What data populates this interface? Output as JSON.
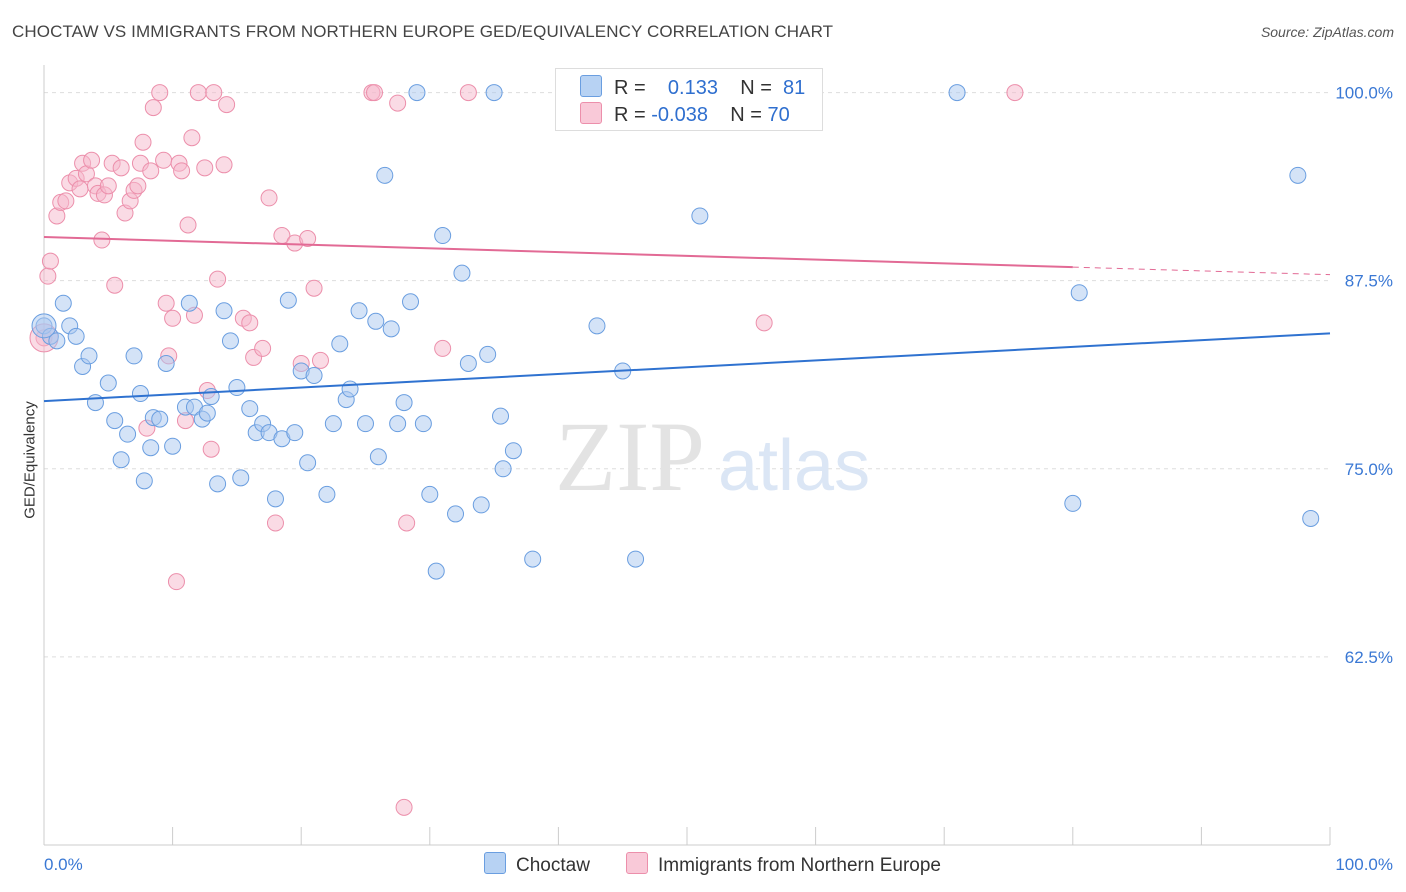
{
  "title": "CHOCTAW VS IMMIGRANTS FROM NORTHERN EUROPE GED/EQUIVALENCY CORRELATION CHART",
  "source": "Source: ZipAtlas.com",
  "watermark": {
    "zip": "ZIP",
    "atlas": "atlas"
  },
  "legend": {
    "r_label": "R =",
    "n_label": "N =",
    "rows": [
      {
        "r": "0.133",
        "n": "81"
      },
      {
        "r": "-0.038",
        "n": "70"
      }
    ]
  },
  "bottom_legend": [
    "Choctaw",
    "Immigrants from Northern Europe"
  ],
  "colors": {
    "blue_fill": "#a9c8f0",
    "blue_stroke": "#6a9ee0",
    "blue_line": "#2f72d0",
    "pink_fill": "#f6b8cb",
    "pink_stroke": "#ec8fab",
    "pink_line": "#e26a95",
    "tick": "#3a78d4",
    "grid": "#dddddd"
  },
  "chart_data": {
    "type": "scatter",
    "title": "CHOCTAW VS IMMIGRANTS FROM NORTHERN EUROPE GED/EQUIVALENCY CORRELATION CHART",
    "xlabel": "",
    "ylabel": "GED/Equivalency",
    "xlim": [
      0,
      100
    ],
    "ylim": [
      50,
      101.5
    ],
    "x_tick_labels": [
      "0.0%",
      "100.0%"
    ],
    "y_ticks": [
      62.5,
      75.0,
      87.5,
      100.0
    ],
    "y_tick_labels": [
      "62.5%",
      "75.0%",
      "87.5%",
      "100.0%"
    ],
    "grid": true,
    "legend_position": "top-center",
    "series": [
      {
        "name": "Choctaw",
        "color": "#a9c8f0",
        "trend": {
          "x": [
            0,
            100
          ],
          "y": [
            79.5,
            84.0
          ]
        },
        "points": [
          [
            0.0,
            84.5
          ],
          [
            0.5,
            83.8
          ],
          [
            1.0,
            83.5
          ],
          [
            1.5,
            86.0
          ],
          [
            2.0,
            84.5
          ],
          [
            2.5,
            83.8
          ],
          [
            3.0,
            81.8
          ],
          [
            3.5,
            82.5
          ],
          [
            4.0,
            79.4
          ],
          [
            5.0,
            80.7
          ],
          [
            5.5,
            78.2
          ],
          [
            6.0,
            75.6
          ],
          [
            6.5,
            77.3
          ],
          [
            7.0,
            82.5
          ],
          [
            7.5,
            80.0
          ],
          [
            7.8,
            74.2
          ],
          [
            8.3,
            76.4
          ],
          [
            8.5,
            78.4
          ],
          [
            9.0,
            78.3
          ],
          [
            9.5,
            82.0
          ],
          [
            10.0,
            76.5
          ],
          [
            11.0,
            79.1
          ],
          [
            11.3,
            86.0
          ],
          [
            11.7,
            79.1
          ],
          [
            12.3,
            78.3
          ],
          [
            12.7,
            78.7
          ],
          [
            13.0,
            79.8
          ],
          [
            13.5,
            74.0
          ],
          [
            14.0,
            85.5
          ],
          [
            14.5,
            83.5
          ],
          [
            15.0,
            80.4
          ],
          [
            15.3,
            74.4
          ],
          [
            16.0,
            79.0
          ],
          [
            16.5,
            77.4
          ],
          [
            17.0,
            78.0
          ],
          [
            17.5,
            77.4
          ],
          [
            18.0,
            73.0
          ],
          [
            18.5,
            77.0
          ],
          [
            19.0,
            86.2
          ],
          [
            19.5,
            77.4
          ],
          [
            20.0,
            81.5
          ],
          [
            20.5,
            75.4
          ],
          [
            21.0,
            81.2
          ],
          [
            22.0,
            73.3
          ],
          [
            22.5,
            78.0
          ],
          [
            23.0,
            83.3
          ],
          [
            23.5,
            79.6
          ],
          [
            23.8,
            80.3
          ],
          [
            24.5,
            85.5
          ],
          [
            25.0,
            78.0
          ],
          [
            25.8,
            84.8
          ],
          [
            26.0,
            75.8
          ],
          [
            26.5,
            94.5
          ],
          [
            27.0,
            84.3
          ],
          [
            27.5,
            78.0
          ],
          [
            28.0,
            79.4
          ],
          [
            28.5,
            86.1
          ],
          [
            29.0,
            100.0
          ],
          [
            29.5,
            78.0
          ],
          [
            30.0,
            73.3
          ],
          [
            30.5,
            68.2
          ],
          [
            31.0,
            90.5
          ],
          [
            32.5,
            88.0
          ],
          [
            32.0,
            72.0
          ],
          [
            33.0,
            82.0
          ],
          [
            34.0,
            72.6
          ],
          [
            34.5,
            82.6
          ],
          [
            35.0,
            100.0
          ],
          [
            35.5,
            78.5
          ],
          [
            35.7,
            75.0
          ],
          [
            36.5,
            76.2
          ],
          [
            38.0,
            69.0
          ],
          [
            43.0,
            84.5
          ],
          [
            45.0,
            81.5
          ],
          [
            46.0,
            69.0
          ],
          [
            51.0,
            91.8
          ],
          [
            71.0,
            100.0
          ],
          [
            80.0,
            72.7
          ],
          [
            80.5,
            86.7
          ],
          [
            97.5,
            94.5
          ],
          [
            98.5,
            71.7
          ]
        ]
      },
      {
        "name": "Immigrants from Northern Europe",
        "color": "#f6b8cb",
        "trend": {
          "x": [
            0,
            80
          ],
          "y": [
            90.4,
            88.4
          ]
        },
        "trend_dashed": {
          "x": [
            80,
            100
          ],
          "y": [
            88.4,
            87.9
          ]
        },
        "points": [
          [
            0.0,
            83.7
          ],
          [
            0.3,
            87.8
          ],
          [
            0.5,
            88.8
          ],
          [
            1.0,
            91.8
          ],
          [
            1.3,
            92.7
          ],
          [
            1.7,
            92.8
          ],
          [
            2.0,
            94.0
          ],
          [
            2.5,
            94.3
          ],
          [
            2.8,
            93.6
          ],
          [
            3.0,
            95.3
          ],
          [
            3.3,
            94.6
          ],
          [
            3.7,
            95.5
          ],
          [
            4.0,
            93.8
          ],
          [
            4.2,
            93.3
          ],
          [
            4.5,
            90.2
          ],
          [
            4.7,
            93.2
          ],
          [
            5.0,
            93.8
          ],
          [
            5.3,
            95.3
          ],
          [
            5.5,
            87.2
          ],
          [
            6.0,
            95.0
          ],
          [
            6.3,
            92.0
          ],
          [
            6.7,
            92.8
          ],
          [
            7.0,
            93.5
          ],
          [
            7.3,
            93.8
          ],
          [
            7.7,
            96.7
          ],
          [
            7.5,
            95.3
          ],
          [
            8.0,
            77.7
          ],
          [
            8.3,
            94.8
          ],
          [
            8.5,
            99.0
          ],
          [
            9.0,
            100.0
          ],
          [
            9.3,
            95.5
          ],
          [
            9.5,
            86.0
          ],
          [
            9.7,
            82.5
          ],
          [
            10.0,
            85.0
          ],
          [
            10.3,
            67.5
          ],
          [
            10.5,
            95.3
          ],
          [
            10.7,
            94.8
          ],
          [
            11.0,
            78.2
          ],
          [
            11.2,
            91.2
          ],
          [
            11.5,
            97.0
          ],
          [
            11.7,
            85.2
          ],
          [
            12.0,
            100.0
          ],
          [
            12.5,
            95.0
          ],
          [
            12.7,
            80.2
          ],
          [
            13.0,
            76.3
          ],
          [
            13.2,
            100.0
          ],
          [
            13.5,
            87.6
          ],
          [
            14.0,
            95.2
          ],
          [
            14.2,
            99.2
          ],
          [
            15.5,
            85.0
          ],
          [
            16.0,
            84.7
          ],
          [
            16.3,
            82.4
          ],
          [
            17.0,
            83.0
          ],
          [
            17.5,
            93.0
          ],
          [
            18.0,
            71.4
          ],
          [
            18.5,
            90.5
          ],
          [
            19.5,
            90.0
          ],
          [
            20.0,
            82.0
          ],
          [
            20.5,
            90.3
          ],
          [
            21.0,
            87.0
          ],
          [
            21.5,
            82.2
          ],
          [
            25.5,
            100.0
          ],
          [
            25.7,
            100.0
          ],
          [
            27.5,
            99.3
          ],
          [
            28.0,
            52.5
          ],
          [
            28.2,
            71.4
          ],
          [
            31.0,
            83.0
          ],
          [
            33.0,
            100.0
          ],
          [
            56.5,
            100.0
          ],
          [
            75.5,
            100.0
          ],
          [
            56.0,
            84.7
          ]
        ]
      }
    ]
  }
}
